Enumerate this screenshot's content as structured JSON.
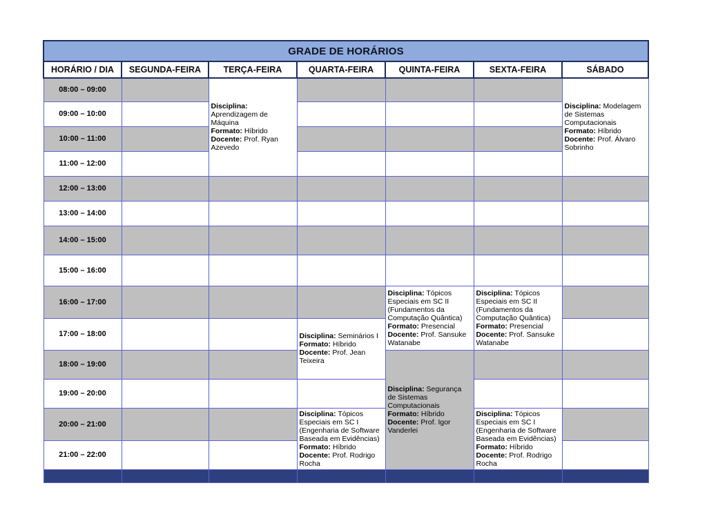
{
  "title": "GRADE DE HORÁRIOS",
  "schedule": {
    "columns": [
      {
        "key": "horario-dia",
        "label": "HORÁRIO / DIA"
      },
      {
        "key": "segunda",
        "label": "SEGUNDA-FEIRA"
      },
      {
        "key": "terca",
        "label": "TERÇA-FEIRA"
      },
      {
        "key": "quarta",
        "label": "QUARTA-FEIRA"
      },
      {
        "key": "quinta",
        "label": "QUINTA-FEIRA"
      },
      {
        "key": "sexta",
        "label": "SEXTA-FEIRA"
      },
      {
        "key": "sabado",
        "label": "SÁBADO"
      }
    ],
    "time_slots": [
      "08:00 – 09:00",
      "09:00 – 10:00",
      "10:00 – 11:00",
      "11:00 – 12:00",
      "12:00 – 13:00",
      "13:00 – 14:00",
      "14:00 – 15:00",
      "15:00 – 16:00",
      "16:00 – 17:00",
      "17:00 – 18:00",
      "18:00 – 19:00",
      "19:00 – 20:00",
      "20:00 – 21:00",
      "21:00 – 22:00"
    ],
    "field_labels": {
      "disciplina": "Disciplina:",
      "formato": "Formato:",
      "docente": "Docente:"
    },
    "courses": [
      {
        "id": "aprendizagem-de-maquina",
        "col": 2,
        "row": 0,
        "span": 4,
        "shade": "white",
        "disciplina": "Aprendizagem de Máquina",
        "formato": "Híbrido",
        "docente": "Prof. Ryan Azevedo"
      },
      {
        "id": "modelagem-de-sistemas-computacionais",
        "col": 6,
        "row": 0,
        "span": 4,
        "shade": "white",
        "disciplina": "Modelagem de Sistemas Computacionais",
        "formato": "Híbrido",
        "docente": "Prof. Álvaro Sobrinho"
      },
      {
        "id": "topicos-especiais-sc2-quinta",
        "col": 4,
        "row": 8,
        "span": 2,
        "shade": "white",
        "disciplina": "Tópicos Especiais em SC II (Fundamentos da Computação Quântica)",
        "formato": "Presencial",
        "docente": "Prof. Sansuke Watanabe"
      },
      {
        "id": "topicos-especiais-sc2-sexta",
        "col": 5,
        "row": 8,
        "span": 2,
        "shade": "white",
        "disciplina": "Tópicos Especiais em SC II (Fundamentos da Computação Quântica)",
        "formato": "Presencial",
        "docente": "Prof. Sansuke Watanabe"
      },
      {
        "id": "seminarios-1",
        "col": 3,
        "row": 9,
        "span": 2,
        "shade": "white",
        "disciplina": "Seminários I",
        "formato": "Híbrido",
        "docente": "Prof. Jean Teixeira"
      },
      {
        "id": "seguranca-de-sistemas-computacionais",
        "col": 4,
        "row": 10,
        "span": 4,
        "shade": "gray",
        "disciplina": "Segurança de Sistemas Computacionais",
        "formato": "Híbrido",
        "docente": "Prof. Igor Vanderlei"
      },
      {
        "id": "topicos-especiais-sc1-quarta",
        "col": 3,
        "row": 12,
        "span": 2,
        "shade": "white",
        "disciplina": "Tópicos Especiais em SC I (Engenharia de Software Baseada em Evidências)",
        "formato": "Híbrido",
        "docente": "Prof. Rodrigo Rocha"
      },
      {
        "id": "topicos-especiais-sc1-sexta",
        "col": 5,
        "row": 12,
        "span": 2,
        "shade": "white",
        "disciplina": "Tópicos Especiais em SC I (Engenharia de Software Baseada em Evidências)",
        "formato": "Híbrido",
        "docente": "Prof. Rodrigo Rocha"
      }
    ]
  },
  "colors": {
    "title_bg": "#8faadc",
    "dark_border": "#1f2c5e",
    "grid_border": "#5b62cf",
    "gray_cell": "#bfbfbf",
    "footer_bg": "#2d3f7e"
  }
}
